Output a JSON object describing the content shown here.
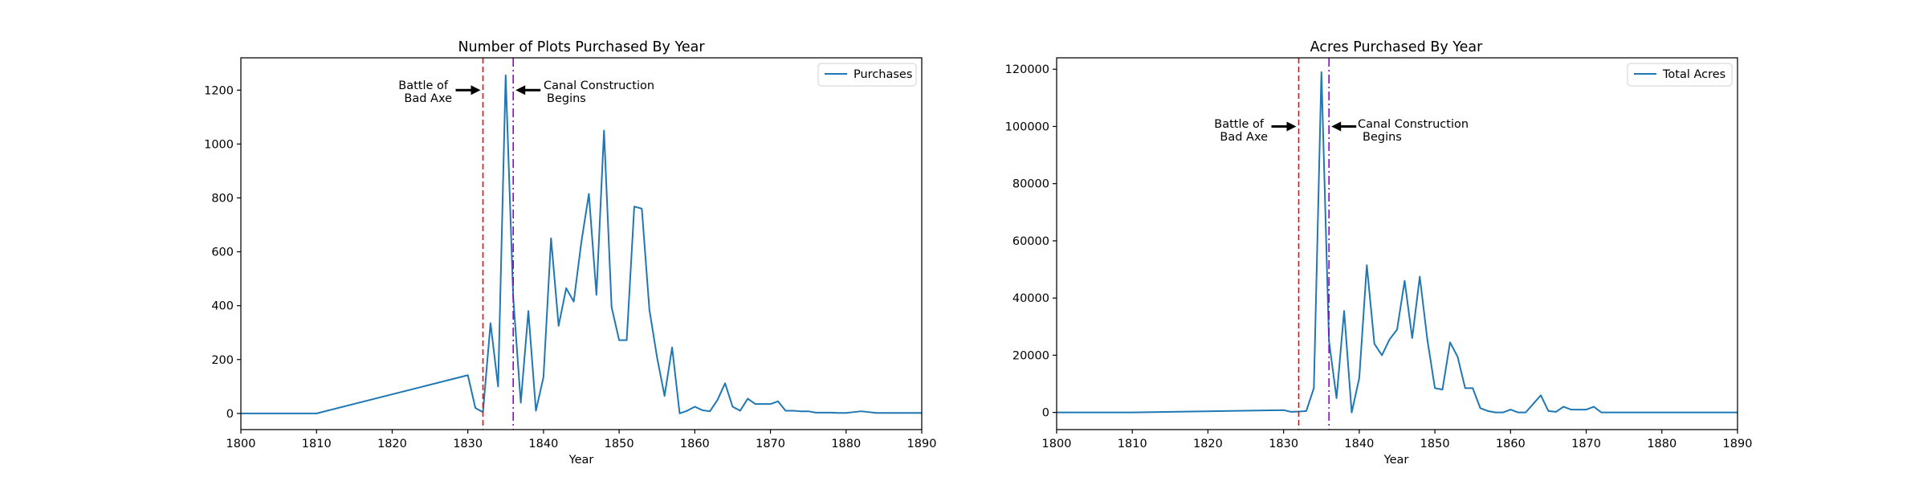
{
  "chart_data": [
    {
      "type": "line",
      "title": "Number of Plots Purchased By Year",
      "xlabel": "Year",
      "ylabel": "",
      "xlim": [
        1800,
        1890
      ],
      "ylim": [
        -60,
        1320
      ],
      "xticks": [
        1800,
        1810,
        1820,
        1830,
        1840,
        1850,
        1860,
        1870,
        1880,
        1890
      ],
      "yticks": [
        0,
        200,
        400,
        600,
        800,
        1000,
        1200
      ],
      "legend": {
        "position": "top-right",
        "entries": [
          "Purchases"
        ]
      },
      "series": [
        {
          "name": "Purchases",
          "color": "#1f77b4",
          "x": [
            1800,
            1810,
            1830,
            1831,
            1832,
            1833,
            1834,
            1835,
            1836,
            1837,
            1838,
            1839,
            1840,
            1841,
            1842,
            1843,
            1844,
            1845,
            1846,
            1847,
            1848,
            1849,
            1850,
            1851,
            1852,
            1853,
            1854,
            1855,
            1856,
            1857,
            1858,
            1859,
            1860,
            1861,
            1862,
            1863,
            1864,
            1865,
            1866,
            1867,
            1868,
            1869,
            1870,
            1871,
            1872,
            1873,
            1874,
            1875,
            1876,
            1877,
            1878,
            1879,
            1880,
            1881,
            1882,
            1883,
            1884,
            1885,
            1886,
            1887,
            1888,
            1889,
            1890
          ],
          "y": [
            0,
            0,
            142,
            20,
            5,
            335,
            100,
            1255,
            430,
            40,
            380,
            10,
            135,
            650,
            325,
            465,
            415,
            635,
            815,
            440,
            1050,
            395,
            272,
            272,
            768,
            760,
            385,
            210,
            65,
            245,
            0,
            10,
            25,
            12,
            8,
            50,
            112,
            25,
            10,
            55,
            35,
            35,
            35,
            45,
            10,
            10,
            8,
            8,
            3,
            3,
            3,
            2,
            2,
            5,
            8,
            5,
            2,
            2,
            2,
            2,
            2,
            2,
            2
          ]
        }
      ],
      "annotations": [
        {
          "text_lines": [
            "Battle of",
            "Bad Axe"
          ],
          "x": 1832,
          "y": 1200,
          "color": "#ff0000",
          "style": "dashed"
        },
        {
          "text_lines": [
            "Canal Construction",
            "Begins"
          ],
          "x": 1836,
          "y": 1200,
          "color": "#9400d3",
          "style": "dashdot"
        }
      ]
    },
    {
      "type": "line",
      "title": "Acres Purchased By Year",
      "xlabel": "Year",
      "ylabel": "",
      "xlim": [
        1800,
        1890
      ],
      "ylim": [
        -6000,
        124000
      ],
      "xticks": [
        1800,
        1810,
        1820,
        1830,
        1840,
        1850,
        1860,
        1870,
        1880,
        1890
      ],
      "yticks": [
        0,
        20000,
        40000,
        60000,
        80000,
        100000,
        120000
      ],
      "legend": {
        "position": "top-right",
        "entries": [
          "Total Acres"
        ]
      },
      "series": [
        {
          "name": "Total Acres",
          "color": "#1f77b4",
          "x": [
            1800,
            1810,
            1830,
            1831,
            1832,
            1833,
            1834,
            1835,
            1836,
            1837,
            1838,
            1839,
            1840,
            1841,
            1842,
            1843,
            1844,
            1845,
            1846,
            1847,
            1848,
            1849,
            1850,
            1851,
            1852,
            1853,
            1854,
            1855,
            1856,
            1857,
            1858,
            1859,
            1860,
            1861,
            1862,
            1863,
            1864,
            1865,
            1866,
            1867,
            1868,
            1869,
            1870,
            1871,
            1872,
            1873,
            1874,
            1875,
            1876,
            1877,
            1878,
            1879,
            1880,
            1881,
            1882,
            1883,
            1884,
            1885,
            1886,
            1887,
            1888,
            1889,
            1890
          ],
          "y": [
            0,
            0,
            800,
            200,
            300,
            500,
            8500,
            119000,
            25000,
            5000,
            35500,
            0,
            12000,
            51500,
            24000,
            20000,
            25500,
            29000,
            46000,
            26000,
            47500,
            25500,
            8500,
            8000,
            24500,
            19500,
            8500,
            8500,
            1500,
            500,
            0,
            0,
            1000,
            0,
            0,
            3000,
            6000,
            500,
            200,
            2000,
            1000,
            1000,
            1000,
            2000,
            0,
            0,
            0,
            0,
            0,
            0,
            0,
            0,
            0,
            0,
            0,
            0,
            0,
            0,
            0,
            0,
            0,
            0,
            0
          ]
        }
      ],
      "annotations": [
        {
          "text_lines": [
            "Battle of",
            "Bad Axe"
          ],
          "x": 1832,
          "y": 100000,
          "color": "#ff0000",
          "style": "dashed"
        },
        {
          "text_lines": [
            "Canal Construction",
            "Begins"
          ],
          "x": 1836,
          "y": 100000,
          "color": "#9400d3",
          "style": "dashdot"
        }
      ]
    }
  ]
}
